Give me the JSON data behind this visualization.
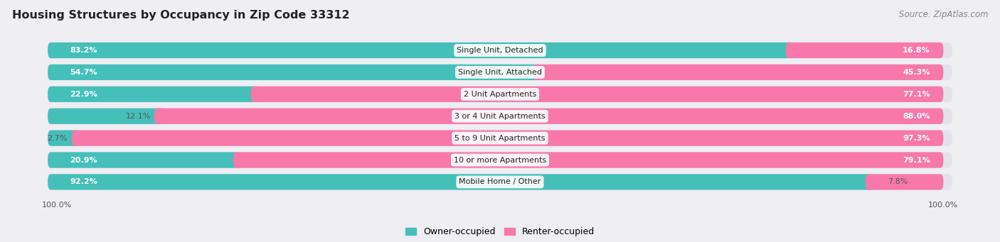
{
  "title": "Housing Structures by Occupancy in Zip Code 33312",
  "source": "Source: ZipAtlas.com",
  "categories": [
    "Single Unit, Detached",
    "Single Unit, Attached",
    "2 Unit Apartments",
    "3 or 4 Unit Apartments",
    "5 to 9 Unit Apartments",
    "10 or more Apartments",
    "Mobile Home / Other"
  ],
  "owner_pct": [
    83.2,
    54.7,
    22.9,
    12.1,
    2.7,
    20.9,
    92.2
  ],
  "renter_pct": [
    16.8,
    45.3,
    77.1,
    88.0,
    97.3,
    79.1,
    7.8
  ],
  "owner_color": "#45BFBA",
  "renter_color": "#F878AB",
  "renter_color_light": "#FBADCC",
  "bg_color": "#eeeef3",
  "row_bg_color": "#e2e2ea",
  "title_fontsize": 11.5,
  "source_fontsize": 8.5,
  "cat_label_fontsize": 8,
  "pct_label_fontsize": 8,
  "legend_fontsize": 9,
  "axis_label_fontsize": 8
}
